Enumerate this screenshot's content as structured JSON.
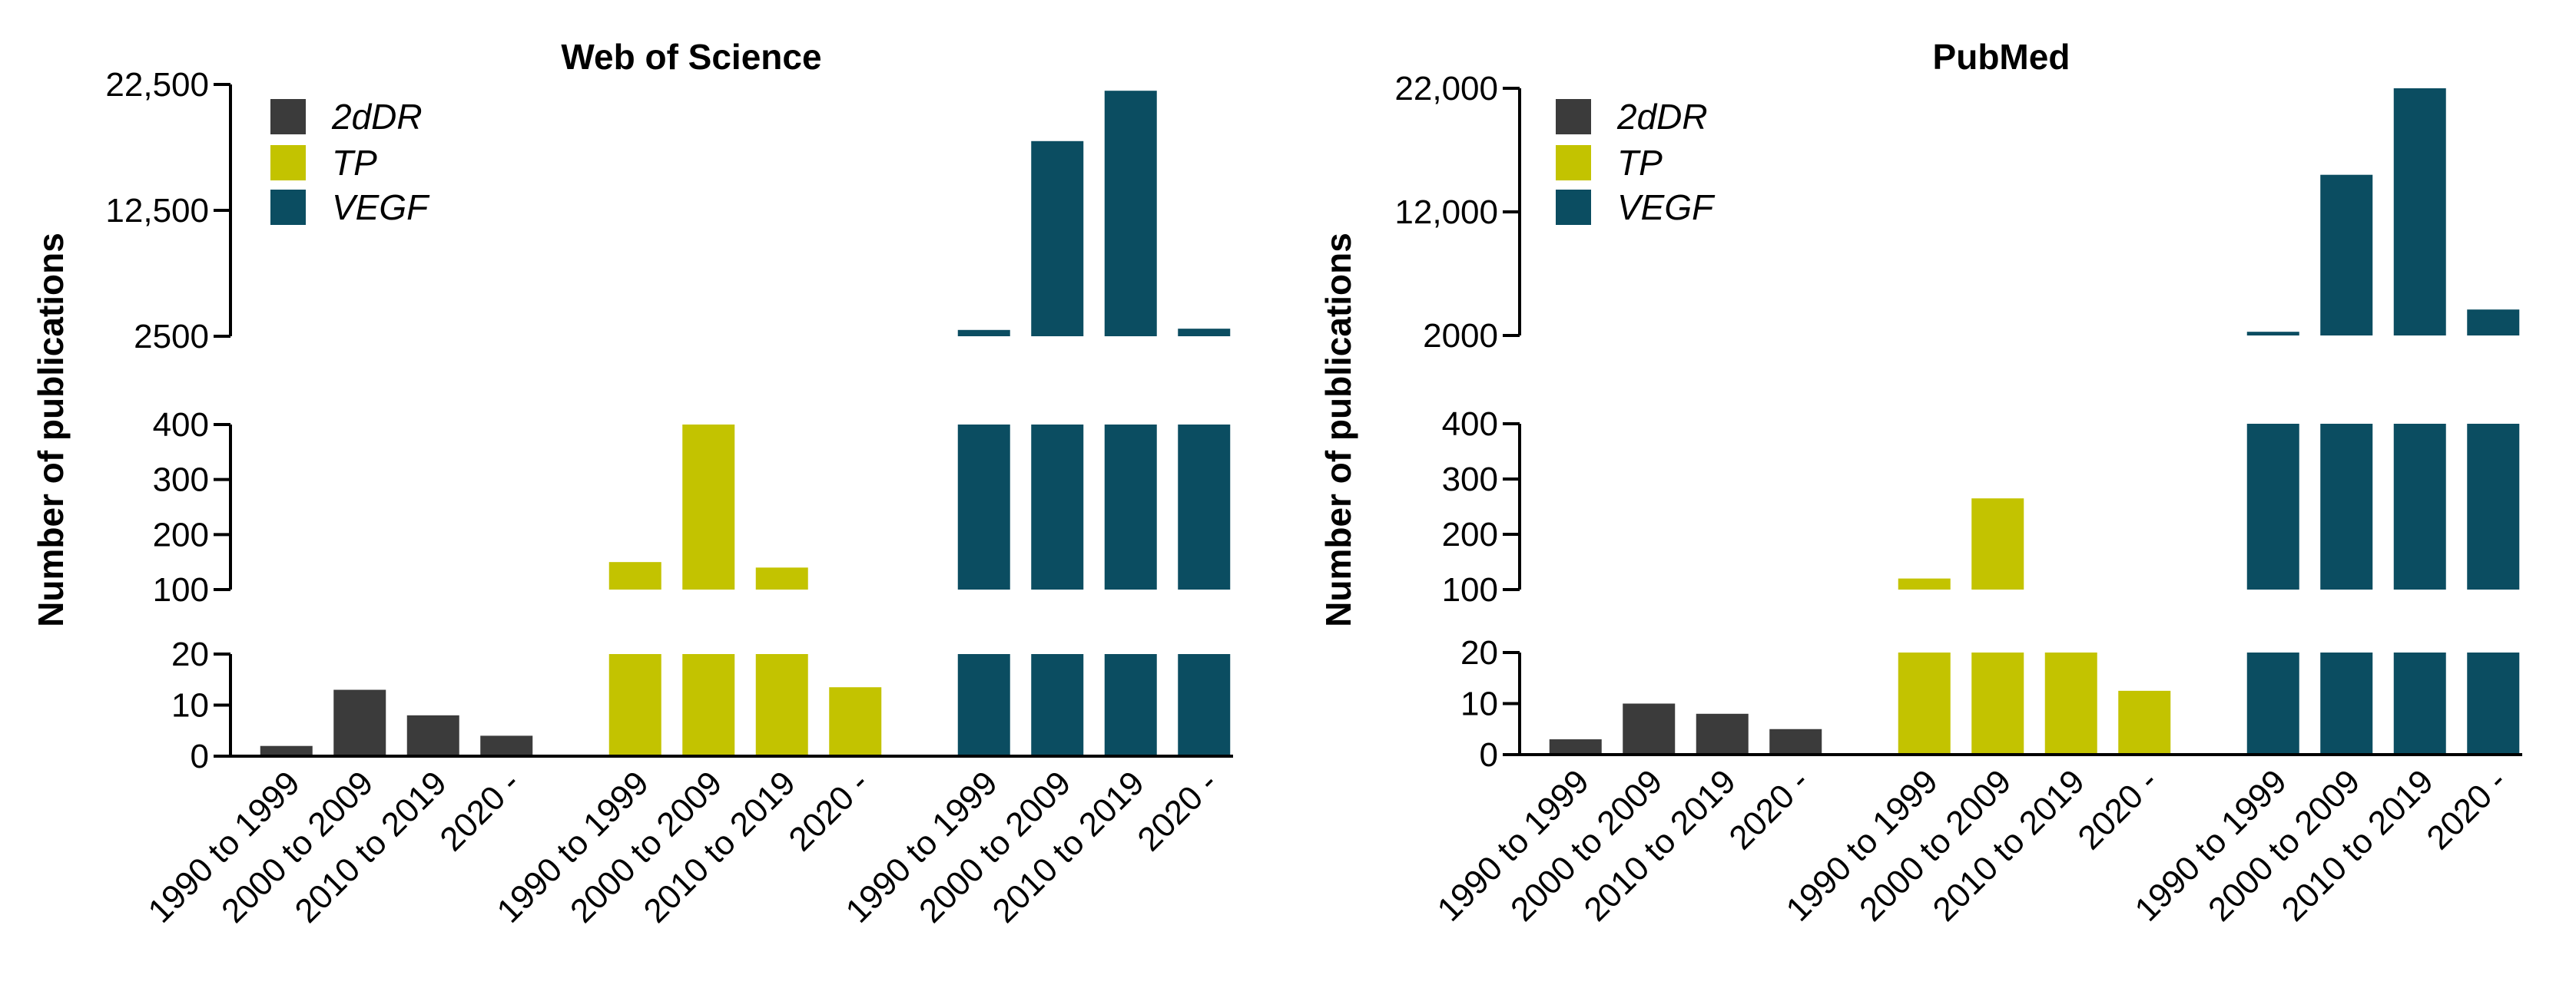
{
  "chart_data": [
    {
      "type": "bar",
      "title": "Web of Science",
      "ylabel": "Number of publications",
      "xlabel": "",
      "categories": [
        "1990 to 1999",
        "2000 to 2009",
        "2010 to 2019",
        "2020 -"
      ],
      "series": [
        {
          "name": "2dDR",
          "color": "#3b3b3b",
          "values": [
            2,
            13,
            8,
            4
          ]
        },
        {
          "name": "TP",
          "color": "#c3c300",
          "values": [
            150,
            400,
            140,
            13.5
          ]
        },
        {
          "name": "VEGF",
          "color": "#0b4d61",
          "values": [
            3000,
            18000,
            22000,
            3100
          ]
        }
      ],
      "axis_segments": [
        {
          "range": [
            0,
            20
          ],
          "ticks": [
            0,
            10,
            20
          ],
          "tick_labels": [
            "0",
            "10",
            "20"
          ]
        },
        {
          "range": [
            100,
            400
          ],
          "ticks": [
            100,
            200,
            300,
            400
          ],
          "tick_labels": [
            "100",
            "200",
            "300",
            "400"
          ]
        },
        {
          "range": [
            2500,
            22500
          ],
          "ticks": [
            2500,
            12500,
            22500
          ],
          "tick_labels": [
            "2500",
            "12,500",
            "22,500"
          ]
        }
      ],
      "legend": "top-left"
    },
    {
      "type": "bar",
      "title": "PubMed",
      "ylabel": "Number of publications",
      "xlabel": "",
      "categories": [
        "1990 to 1999",
        "2000 to 2009",
        "2010 to 2019",
        "2020 -"
      ],
      "series": [
        {
          "name": "2dDR",
          "color": "#3b3b3b",
          "values": [
            3,
            10,
            8,
            5
          ]
        },
        {
          "name": "TP",
          "color": "#c3c300",
          "values": [
            120,
            265,
            90,
            12.5
          ]
        },
        {
          "name": "VEGF",
          "color": "#0b4d61",
          "values": [
            2300,
            15000,
            22300,
            4100
          ]
        }
      ],
      "axis_segments": [
        {
          "range": [
            0,
            20
          ],
          "ticks": [
            0,
            10,
            20
          ],
          "tick_labels": [
            "0",
            "10",
            "20"
          ]
        },
        {
          "range": [
            100,
            400
          ],
          "ticks": [
            100,
            200,
            300,
            400
          ],
          "tick_labels": [
            "100",
            "200",
            "300",
            "400"
          ]
        },
        {
          "range": [
            2000,
            22000
          ],
          "ticks": [
            2000,
            12000,
            22000
          ],
          "tick_labels": [
            "2000",
            "12,000",
            "22,000"
          ]
        }
      ],
      "legend": "top-left"
    }
  ]
}
